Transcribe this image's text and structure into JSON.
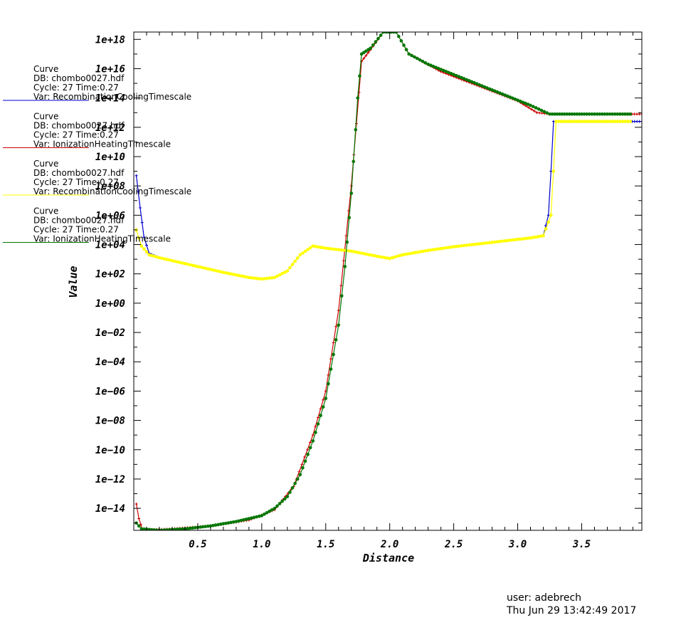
{
  "chart_data": {
    "type": "line",
    "xlabel": "Distance",
    "ylabel": "Value",
    "xlim": [
      0.0,
      3.97
    ],
    "ylim_log10": [
      -15.5,
      18.5
    ],
    "x_ticks": [
      0.5,
      1.0,
      1.5,
      2.0,
      2.5,
      3.0,
      3.5
    ],
    "x_tick_labels": [
      "0.5",
      "1.0",
      "1.5",
      "2.0",
      "2.5",
      "3.0",
      "3.5"
    ],
    "y_ticks_log10": [
      18,
      16,
      14,
      12,
      10,
      8,
      6,
      4,
      2,
      0,
      -2,
      -4,
      -6,
      -8,
      -10,
      -12,
      -14
    ],
    "y_tick_labels": [
      "1e+18",
      "1e+16",
      "1e+14",
      "1e+12",
      "1e+10",
      "1e+08",
      "1e+06",
      "1e+04",
      "1e+02",
      "1e+00",
      "1e−02",
      "1e−04",
      "1e−06",
      "1e−08",
      "1e−10",
      "1e−12",
      "1e−14"
    ],
    "y_scale": "log",
    "grid": false,
    "legend_placement": "left",
    "series": [
      {
        "legend": [
          "Curve",
          "DB: chombo0027.hdf",
          "Cycle: 27        Time:0.27",
          "Var: RecombinationCoolingTimescale"
        ],
        "color": "#0000cc",
        "marker": "plus",
        "points": [
          [
            0.02,
            8.7
          ],
          [
            0.05,
            6.5
          ],
          [
            0.08,
            4.5
          ],
          [
            0.12,
            3.4
          ],
          [
            0.2,
            3.1
          ],
          [
            0.3,
            2.9
          ],
          [
            0.5,
            2.5
          ],
          [
            0.7,
            2.1
          ],
          [
            0.9,
            1.75
          ],
          [
            1.0,
            1.65
          ],
          [
            1.1,
            1.75
          ],
          [
            1.2,
            2.2
          ],
          [
            1.3,
            3.3
          ],
          [
            1.4,
            3.9
          ],
          [
            1.5,
            3.75
          ],
          [
            1.7,
            3.55
          ],
          [
            1.9,
            3.2
          ],
          [
            2.0,
            3.05
          ],
          [
            2.1,
            3.3
          ],
          [
            2.3,
            3.6
          ],
          [
            2.5,
            3.85
          ],
          [
            2.7,
            4.05
          ],
          [
            2.9,
            4.25
          ],
          [
            3.1,
            4.45
          ],
          [
            3.2,
            4.6
          ],
          [
            3.24,
            6.0
          ],
          [
            3.26,
            9.0
          ],
          [
            3.28,
            12.4
          ],
          [
            3.4,
            12.4
          ],
          [
            3.6,
            12.4
          ],
          [
            3.8,
            12.4
          ],
          [
            3.97,
            12.4
          ]
        ]
      },
      {
        "legend": [
          "Curve",
          "DB: chombo0027.hdf",
          "Cycle: 27        Time:0.27",
          "Var: IonizationHeatingTimescale"
        ],
        "color": "#cc0000",
        "marker": "plus",
        "points": [
          [
            0.02,
            -13.7
          ],
          [
            0.04,
            -14.7
          ],
          [
            0.07,
            -15.5
          ],
          [
            0.3,
            -15.4
          ],
          [
            0.6,
            -15.2
          ],
          [
            0.9,
            -14.8
          ],
          [
            1.1,
            -14.1
          ],
          [
            1.25,
            -12.5
          ],
          [
            1.4,
            -9.0
          ],
          [
            1.5,
            -6.0
          ],
          [
            1.6,
            -0.5
          ],
          [
            1.7,
            8.0
          ],
          [
            1.78,
            16.5
          ],
          [
            1.85,
            17.3
          ],
          [
            1.95,
            18.5
          ],
          [
            2.05,
            18.5
          ],
          [
            2.15,
            17.0
          ],
          [
            2.4,
            15.8
          ],
          [
            2.7,
            14.8
          ],
          [
            3.0,
            13.8
          ],
          [
            3.15,
            13.0
          ],
          [
            3.25,
            12.9
          ],
          [
            3.6,
            12.9
          ],
          [
            3.97,
            12.9
          ]
        ]
      },
      {
        "legend": [
          "Curve",
          "DB: chombo0027.hdf",
          "Cycle: 27        Time:0.27",
          "Var: RecombinationCoolingTimescale"
        ],
        "color": "#ffff00",
        "marker": "circle",
        "points": [
          [
            0.02,
            5.0
          ],
          [
            0.06,
            3.9
          ],
          [
            0.12,
            3.3
          ],
          [
            0.2,
            3.1
          ],
          [
            0.3,
            2.9
          ],
          [
            0.5,
            2.5
          ],
          [
            0.7,
            2.1
          ],
          [
            0.9,
            1.75
          ],
          [
            1.0,
            1.65
          ],
          [
            1.1,
            1.75
          ],
          [
            1.2,
            2.2
          ],
          [
            1.3,
            3.3
          ],
          [
            1.4,
            3.9
          ],
          [
            1.5,
            3.75
          ],
          [
            1.7,
            3.55
          ],
          [
            1.9,
            3.2
          ],
          [
            2.0,
            3.05
          ],
          [
            2.1,
            3.3
          ],
          [
            2.3,
            3.6
          ],
          [
            2.5,
            3.85
          ],
          [
            2.7,
            4.05
          ],
          [
            2.9,
            4.25
          ],
          [
            3.1,
            4.45
          ],
          [
            3.2,
            4.6
          ],
          [
            3.26,
            6.0
          ],
          [
            3.28,
            9.0
          ],
          [
            3.3,
            12.4
          ],
          [
            3.5,
            12.4
          ],
          [
            3.7,
            12.4
          ],
          [
            3.88,
            12.4
          ]
        ]
      },
      {
        "legend": [
          "Curve",
          "DB: chombo0027.hdf",
          "Cycle: 27        Time:0.27",
          "Var: IonizationHeatingTimescale"
        ],
        "color": "#007700",
        "marker": "circle",
        "points": [
          [
            0.02,
            -15.0
          ],
          [
            0.06,
            -15.4
          ],
          [
            0.2,
            -15.5
          ],
          [
            0.4,
            -15.4
          ],
          [
            0.6,
            -15.2
          ],
          [
            0.8,
            -14.9
          ],
          [
            1.0,
            -14.5
          ],
          [
            1.1,
            -14.0
          ],
          [
            1.2,
            -13.2
          ],
          [
            1.3,
            -11.7
          ],
          [
            1.4,
            -9.4
          ],
          [
            1.5,
            -6.5
          ],
          [
            1.6,
            -1.5
          ],
          [
            1.65,
            2.5
          ],
          [
            1.7,
            7.5
          ],
          [
            1.75,
            14.0
          ],
          [
            1.78,
            17.0
          ],
          [
            1.85,
            17.4
          ],
          [
            1.95,
            18.5
          ],
          [
            2.05,
            18.5
          ],
          [
            2.15,
            17.0
          ],
          [
            2.3,
            16.3
          ],
          [
            2.5,
            15.6
          ],
          [
            2.7,
            14.9
          ],
          [
            2.9,
            14.2
          ],
          [
            3.1,
            13.5
          ],
          [
            3.25,
            12.9
          ],
          [
            3.5,
            12.9
          ],
          [
            3.88,
            12.9
          ]
        ]
      }
    ]
  },
  "footer": {
    "user": "user: adebrech",
    "timestamp": "Thu Jun 29 13:42:49 2017"
  }
}
